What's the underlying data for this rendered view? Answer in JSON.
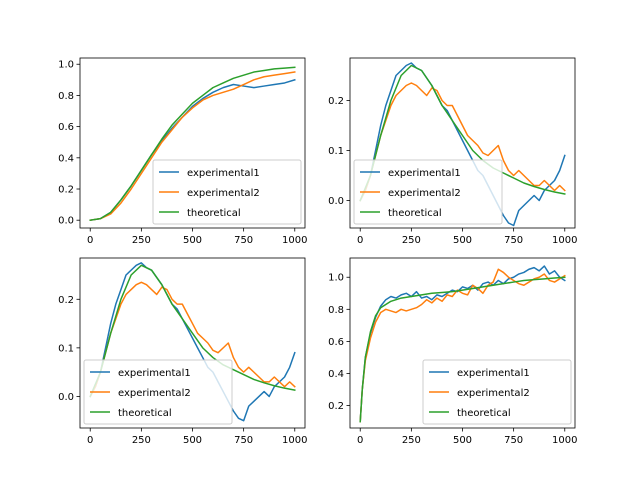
{
  "colors": {
    "experimental1": "#1f77b4",
    "experimental2": "#ff7f0e",
    "theoretical": "#2ca02c"
  },
  "chart_data": [
    {
      "type": "line",
      "xlim": [
        -50,
        1050
      ],
      "ylim": [
        -0.05,
        1.04
      ],
      "xticks": [
        0,
        250,
        500,
        750,
        1000
      ],
      "yticks": [
        0.0,
        0.2,
        0.4,
        0.6,
        0.8,
        1.0
      ],
      "ytick_labels": [
        "0.0",
        "0.2",
        "0.4",
        "0.6",
        "0.8",
        "1.0"
      ],
      "legend_position": "lower right",
      "series": [
        {
          "name": "experimental1",
          "color": "#1f77b4",
          "x": [
            0,
            50,
            100,
            150,
            200,
            250,
            300,
            350,
            400,
            450,
            500,
            550,
            600,
            650,
            700,
            750,
            800,
            850,
            900,
            950,
            1000
          ],
          "y": [
            0.0,
            0.01,
            0.05,
            0.13,
            0.22,
            0.32,
            0.42,
            0.51,
            0.59,
            0.66,
            0.73,
            0.78,
            0.82,
            0.85,
            0.87,
            0.86,
            0.85,
            0.86,
            0.87,
            0.88,
            0.9
          ]
        },
        {
          "name": "experimental2",
          "color": "#ff7f0e",
          "x": [
            0,
            50,
            100,
            150,
            200,
            250,
            300,
            350,
            400,
            450,
            500,
            550,
            600,
            650,
            700,
            750,
            800,
            850,
            900,
            950,
            1000
          ],
          "y": [
            0.0,
            0.01,
            0.04,
            0.11,
            0.2,
            0.3,
            0.4,
            0.5,
            0.58,
            0.66,
            0.72,
            0.77,
            0.8,
            0.82,
            0.84,
            0.87,
            0.9,
            0.92,
            0.93,
            0.94,
            0.95
          ]
        },
        {
          "name": "theoretical",
          "color": "#2ca02c",
          "x": [
            0,
            50,
            100,
            150,
            200,
            250,
            300,
            350,
            400,
            450,
            500,
            550,
            600,
            650,
            700,
            750,
            800,
            850,
            900,
            950,
            1000
          ],
          "y": [
            0.0,
            0.01,
            0.05,
            0.13,
            0.22,
            0.32,
            0.42,
            0.52,
            0.61,
            0.68,
            0.75,
            0.8,
            0.85,
            0.88,
            0.91,
            0.93,
            0.95,
            0.96,
            0.97,
            0.975,
            0.98
          ]
        }
      ]
    },
    {
      "type": "line",
      "xlim": [
        -50,
        1050
      ],
      "ylim": [
        -0.055,
        0.285
      ],
      "xticks": [
        0,
        250,
        500,
        750,
        1000
      ],
      "yticks": [
        0.0,
        0.1,
        0.2
      ],
      "ytick_labels": [
        "0.0",
        "0.1",
        "0.2"
      ],
      "legend_position": "lower left",
      "series": [
        {
          "name": "experimental1",
          "color": "#1f77b4",
          "x": [
            0,
            25,
            50,
            75,
            100,
            125,
            150,
            175,
            200,
            225,
            250,
            275,
            300,
            325,
            350,
            375,
            400,
            425,
            450,
            475,
            500,
            525,
            550,
            575,
            600,
            625,
            650,
            675,
            700,
            725,
            750,
            775,
            800,
            825,
            850,
            875,
            900,
            925,
            950,
            975,
            1000
          ],
          "y": [
            0.0,
            0.02,
            0.05,
            0.1,
            0.15,
            0.19,
            0.22,
            0.25,
            0.26,
            0.27,
            0.275,
            0.265,
            0.26,
            0.245,
            0.23,
            0.21,
            0.19,
            0.18,
            0.16,
            0.14,
            0.12,
            0.1,
            0.08,
            0.06,
            0.05,
            0.03,
            0.01,
            -0.01,
            -0.03,
            -0.045,
            -0.05,
            -0.02,
            -0.01,
            0.0,
            0.01,
            0.0,
            0.02,
            0.03,
            0.04,
            0.06,
            0.09
          ]
        },
        {
          "name": "experimental2",
          "color": "#ff7f0e",
          "x": [
            0,
            25,
            50,
            75,
            100,
            125,
            150,
            175,
            200,
            225,
            250,
            275,
            300,
            325,
            350,
            375,
            400,
            425,
            450,
            475,
            500,
            525,
            550,
            575,
            600,
            625,
            650,
            675,
            700,
            725,
            750,
            775,
            800,
            825,
            850,
            875,
            900,
            925,
            950,
            975,
            1000
          ],
          "y": [
            0.0,
            0.02,
            0.05,
            0.09,
            0.13,
            0.16,
            0.19,
            0.21,
            0.22,
            0.23,
            0.235,
            0.23,
            0.22,
            0.21,
            0.225,
            0.22,
            0.2,
            0.19,
            0.19,
            0.17,
            0.15,
            0.13,
            0.12,
            0.11,
            0.095,
            0.09,
            0.1,
            0.11,
            0.08,
            0.06,
            0.05,
            0.06,
            0.05,
            0.04,
            0.03,
            0.03,
            0.04,
            0.03,
            0.02,
            0.03,
            0.02
          ]
        },
        {
          "name": "theoretical",
          "color": "#2ca02c",
          "x": [
            0,
            50,
            100,
            150,
            200,
            250,
            300,
            350,
            400,
            450,
            500,
            550,
            600,
            650,
            700,
            750,
            800,
            850,
            900,
            950,
            1000
          ],
          "y": [
            0.0,
            0.05,
            0.13,
            0.2,
            0.25,
            0.27,
            0.26,
            0.23,
            0.19,
            0.16,
            0.13,
            0.1,
            0.08,
            0.065,
            0.055,
            0.045,
            0.035,
            0.028,
            0.022,
            0.017,
            0.013
          ]
        }
      ]
    },
    {
      "type": "line",
      "xlim": [
        -50,
        1050
      ],
      "ylim": [
        -0.065,
        0.285
      ],
      "xticks": [
        0,
        250,
        500,
        750,
        1000
      ],
      "yticks": [
        0.0,
        0.1,
        0.2
      ],
      "ytick_labels": [
        "0.0",
        "0.1",
        "0.2"
      ],
      "legend_position": "lower left",
      "series": [
        {
          "name": "experimental1",
          "color": "#1f77b4",
          "x": [
            0,
            25,
            50,
            75,
            100,
            125,
            150,
            175,
            200,
            225,
            250,
            275,
            300,
            325,
            350,
            375,
            400,
            425,
            450,
            475,
            500,
            525,
            550,
            575,
            600,
            625,
            650,
            675,
            700,
            725,
            750,
            775,
            800,
            825,
            850,
            875,
            900,
            925,
            950,
            975,
            1000
          ],
          "y": [
            0.0,
            0.02,
            0.05,
            0.1,
            0.15,
            0.19,
            0.22,
            0.25,
            0.26,
            0.27,
            0.275,
            0.265,
            0.26,
            0.245,
            0.23,
            0.21,
            0.19,
            0.18,
            0.16,
            0.14,
            0.12,
            0.1,
            0.08,
            0.06,
            0.05,
            0.03,
            0.01,
            -0.01,
            -0.03,
            -0.045,
            -0.05,
            -0.02,
            -0.01,
            0.0,
            0.01,
            0.0,
            0.02,
            0.03,
            0.04,
            0.06,
            0.09
          ]
        },
        {
          "name": "experimental2",
          "color": "#ff7f0e",
          "x": [
            0,
            25,
            50,
            75,
            100,
            125,
            150,
            175,
            200,
            225,
            250,
            275,
            300,
            325,
            350,
            375,
            400,
            425,
            450,
            475,
            500,
            525,
            550,
            575,
            600,
            625,
            650,
            675,
            700,
            725,
            750,
            775,
            800,
            825,
            850,
            875,
            900,
            925,
            950,
            975,
            1000
          ],
          "y": [
            0.0,
            0.02,
            0.05,
            0.09,
            0.13,
            0.16,
            0.19,
            0.21,
            0.22,
            0.23,
            0.235,
            0.23,
            0.22,
            0.21,
            0.225,
            0.22,
            0.2,
            0.19,
            0.19,
            0.17,
            0.15,
            0.13,
            0.12,
            0.11,
            0.095,
            0.09,
            0.1,
            0.11,
            0.08,
            0.06,
            0.05,
            0.06,
            0.05,
            0.04,
            0.03,
            0.03,
            0.04,
            0.03,
            0.02,
            0.03,
            0.02
          ]
        },
        {
          "name": "theoretical",
          "color": "#2ca02c",
          "x": [
            0,
            50,
            100,
            150,
            200,
            250,
            300,
            350,
            400,
            450,
            500,
            550,
            600,
            650,
            700,
            750,
            800,
            850,
            900,
            950,
            1000
          ],
          "y": [
            0.0,
            0.05,
            0.13,
            0.2,
            0.25,
            0.27,
            0.26,
            0.23,
            0.19,
            0.16,
            0.13,
            0.1,
            0.08,
            0.065,
            0.055,
            0.045,
            0.035,
            0.028,
            0.022,
            0.017,
            0.013
          ]
        }
      ]
    },
    {
      "type": "line",
      "xlim": [
        -50,
        1050
      ],
      "ylim": [
        0.06,
        1.12
      ],
      "xticks": [
        0,
        250,
        500,
        750,
        1000
      ],
      "yticks": [
        0.2,
        0.4,
        0.6,
        0.8,
        1.0
      ],
      "ytick_labels": [
        "0.2",
        "0.4",
        "0.6",
        "0.8",
        "1.0"
      ],
      "legend_position": "lower right",
      "series": [
        {
          "name": "experimental1",
          "color": "#1f77b4",
          "x": [
            0,
            10,
            25,
            50,
            75,
            100,
            125,
            150,
            175,
            200,
            225,
            250,
            275,
            300,
            325,
            350,
            375,
            400,
            425,
            450,
            475,
            500,
            525,
            550,
            575,
            600,
            625,
            650,
            675,
            700,
            725,
            750,
            775,
            800,
            825,
            850,
            875,
            900,
            925,
            950,
            975,
            1000
          ],
          "y": [
            0.1,
            0.3,
            0.5,
            0.65,
            0.75,
            0.82,
            0.86,
            0.88,
            0.87,
            0.89,
            0.9,
            0.88,
            0.91,
            0.87,
            0.88,
            0.86,
            0.89,
            0.88,
            0.9,
            0.92,
            0.91,
            0.94,
            0.93,
            0.95,
            0.92,
            0.96,
            0.97,
            0.95,
            0.98,
            0.96,
            0.99,
            1.0,
            1.02,
            1.03,
            1.05,
            1.06,
            1.04,
            1.07,
            1.02,
            1.04,
            1.0,
            0.98
          ]
        },
        {
          "name": "experimental2",
          "color": "#ff7f0e",
          "x": [
            0,
            10,
            25,
            50,
            75,
            100,
            125,
            150,
            175,
            200,
            225,
            250,
            275,
            300,
            325,
            350,
            375,
            400,
            425,
            450,
            475,
            500,
            525,
            550,
            575,
            600,
            625,
            650,
            675,
            700,
            725,
            750,
            775,
            800,
            825,
            850,
            875,
            900,
            925,
            950,
            975,
            1000
          ],
          "y": [
            0.1,
            0.3,
            0.48,
            0.62,
            0.72,
            0.78,
            0.8,
            0.79,
            0.78,
            0.8,
            0.79,
            0.8,
            0.81,
            0.83,
            0.86,
            0.84,
            0.87,
            0.85,
            0.89,
            0.88,
            0.92,
            0.9,
            0.89,
            0.95,
            0.93,
            0.9,
            0.95,
            0.97,
            1.05,
            1.03,
            1.0,
            0.98,
            0.96,
            0.95,
            0.97,
            0.99,
            1.0,
            1.02,
            0.98,
            0.97,
            0.99,
            1.01
          ]
        },
        {
          "name": "theoretical",
          "color": "#2ca02c",
          "x": [
            0,
            10,
            25,
            50,
            75,
            100,
            150,
            200,
            250,
            300,
            350,
            400,
            450,
            500,
            550,
            600,
            650,
            700,
            750,
            800,
            850,
            900,
            950,
            1000
          ],
          "y": [
            0.1,
            0.3,
            0.5,
            0.66,
            0.76,
            0.81,
            0.85,
            0.87,
            0.88,
            0.89,
            0.9,
            0.905,
            0.91,
            0.92,
            0.93,
            0.94,
            0.95,
            0.96,
            0.97,
            0.98,
            0.985,
            0.99,
            0.995,
            1.0
          ]
        }
      ]
    }
  ]
}
